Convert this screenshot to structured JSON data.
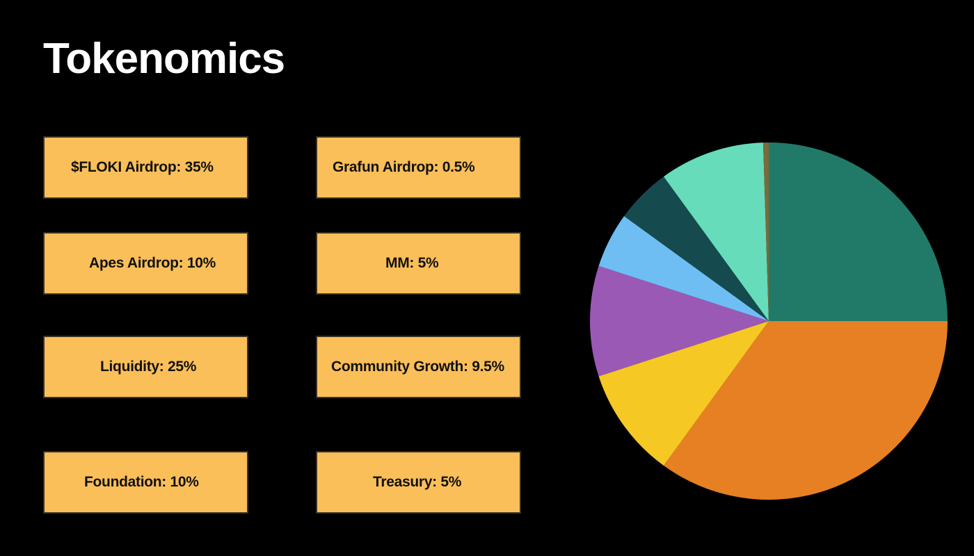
{
  "title": "Tokenomics",
  "colors": {
    "background": "#000000",
    "card_fill": "#fbbf59",
    "title_text": "#ffffff"
  },
  "cards": [
    {
      "label": "$FLOKI Airdrop: 35%"
    },
    {
      "label": "Grafun Airdrop: 0.5%"
    },
    {
      "label": "Apes Airdrop: 10%"
    },
    {
      "label": "MM: 5%"
    },
    {
      "label": "Liquidity: 25%"
    },
    {
      "label": "Community Growth: 9.5%"
    },
    {
      "label": "Foundation: 10%"
    },
    {
      "label": "Treasury:  5%"
    }
  ],
  "chart_data": {
    "type": "pie",
    "start": "12 o'clock",
    "direction": "clockwise",
    "slices": [
      {
        "value": 25,
        "color": "#217a67"
      },
      {
        "value": 35,
        "color": "#e68023"
      },
      {
        "value": 10,
        "color": "#f6c823"
      },
      {
        "value": 10,
        "color": "#9b59b6"
      },
      {
        "value": 5,
        "color": "#6ebef4"
      },
      {
        "value": 5,
        "color": "#154a4e"
      },
      {
        "value": 9.5,
        "color": "#66dcbb"
      },
      {
        "value": 0.5,
        "color": "#7b6a3a"
      }
    ]
  }
}
